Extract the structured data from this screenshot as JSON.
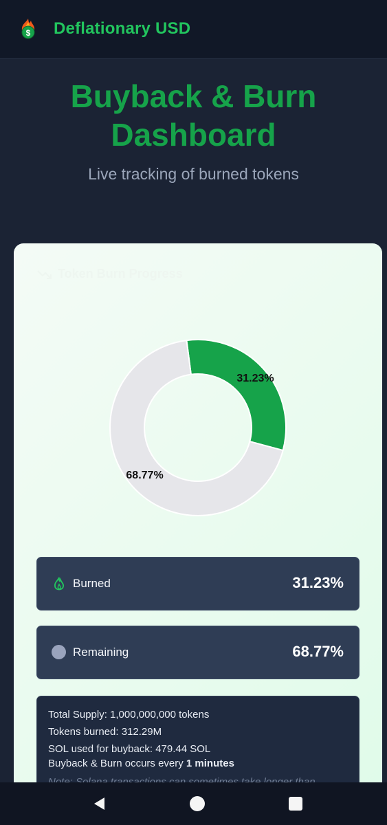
{
  "header": {
    "brand": "Deflationary USD",
    "logo_icon": "burning-dollar-icon"
  },
  "hero": {
    "title_line1": "Buyback & Burn",
    "title_line2": "Dashboard",
    "subtitle": "Live tracking of burned tokens"
  },
  "card": {
    "title": "Token Burn Progress",
    "title_icon": "trending-down-icon"
  },
  "chart_data": {
    "type": "pie",
    "title": "",
    "slices": [
      {
        "label": "Burned",
        "value": 31.23,
        "color": "#16a34a",
        "text": "31.23%"
      },
      {
        "label": "Remaining",
        "value": 68.77,
        "color": "#e6e6ea",
        "text": "68.77%"
      }
    ]
  },
  "stats": {
    "burned_label": "Burned",
    "burned_value": "31.23%",
    "remaining_label": "Remaining",
    "remaining_value": "68.77%"
  },
  "info": {
    "total_supply": "Total Supply: 1,000,000,000 tokens",
    "tokens_burned": "Tokens burned: 312.29M",
    "sol_used": "SOL used for buyback: 479.44 SOL",
    "frequency_prefix": "Buyback & Burn occurs every ",
    "frequency_value": "1 minutes",
    "note": "Note: Solana transactions can sometimes take longer than"
  },
  "colors": {
    "brand_green": "#16a34a",
    "bright_green": "#22c55e",
    "background": "#1b2334"
  }
}
